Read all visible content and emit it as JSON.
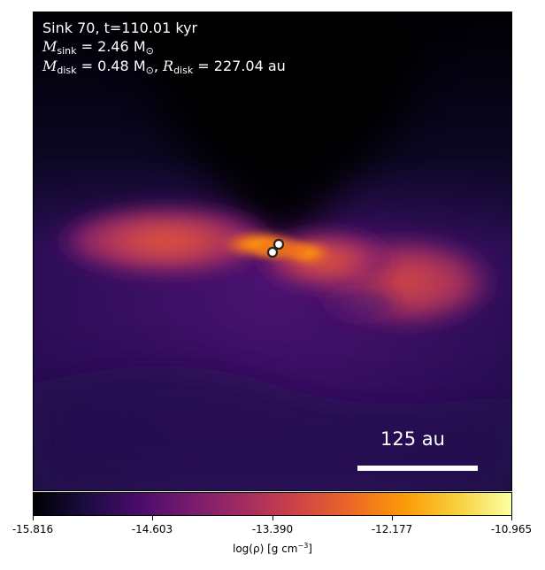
{
  "header": {
    "title_line": "Sink 70, t=110.01 kyr",
    "mass_sink_symbol": "M",
    "mass_sink_sub": "sink",
    "mass_sink_value": " = 2.46 M",
    "mass_sink_unit_sub": "⊙",
    "mass_disk_symbol": "M",
    "mass_disk_sub": "disk",
    "mass_disk_value": " = 0.48 M",
    "mass_disk_unit_sub": "⊙",
    "radius_prefix": ", ",
    "radius_symbol": "R",
    "radius_sub": "disk",
    "radius_value": " = 227.04 au"
  },
  "scale_bar": {
    "label": "125 au"
  },
  "colorbar": {
    "ticks": [
      "-15.816",
      "-14.603",
      "-13.390",
      "-12.177",
      "-10.965"
    ],
    "label_main": "log(ρ) [g cm",
    "label_exp": "−3",
    "label_end": "]",
    "colormap": "inferno"
  },
  "colors": {
    "background_dark": "#000004",
    "mid_purple": "#3b0f70",
    "disk_orange": "#e35933",
    "peak_yellow": "#fcffa4",
    "sink_marker": "#ffffff"
  }
}
